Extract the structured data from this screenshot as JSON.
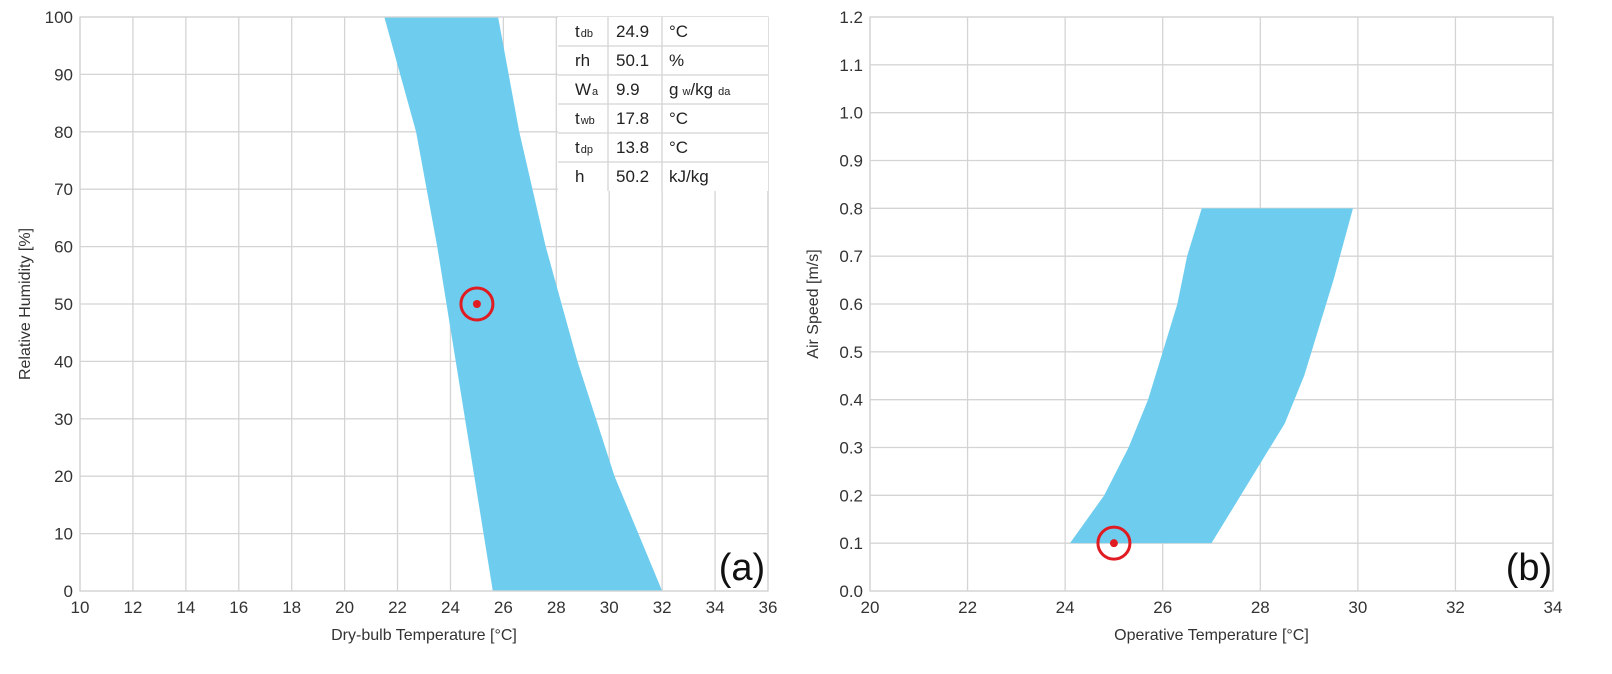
{
  "chart_data": [
    {
      "type": "area",
      "panel_label": "(a)",
      "xlabel": "Dry-bulb Temperature [°C]",
      "ylabel": "Relative Humidity [%]",
      "xlim": [
        10,
        36
      ],
      "ylim": [
        0,
        100
      ],
      "xticks": [
        "10",
        "12",
        "14",
        "16",
        "18",
        "20",
        "22",
        "24",
        "26",
        "28",
        "30",
        "32",
        "34",
        "36"
      ],
      "yticks": [
        "0",
        "10",
        "20",
        "30",
        "40",
        "50",
        "60",
        "70",
        "80",
        "90",
        "100"
      ],
      "grid": true,
      "comfort_zone": {
        "left_boundary": [
          [
            25.6,
            0
          ],
          [
            24.9,
            20
          ],
          [
            24.2,
            40
          ],
          [
            23.5,
            60
          ],
          [
            22.7,
            80
          ],
          [
            21.5,
            100
          ]
        ],
        "right_boundary": [
          [
            32.0,
            0
          ],
          [
            30.2,
            20
          ],
          [
            28.8,
            40
          ],
          [
            27.6,
            60
          ],
          [
            26.6,
            80
          ],
          [
            25.8,
            100
          ]
        ]
      },
      "current_point": {
        "x": 25.0,
        "y": 50.0
      },
      "readout": [
        {
          "symbol": "t",
          "subscript": "db",
          "value": "24.9",
          "unit": "°C"
        },
        {
          "symbol": "rh",
          "subscript": "",
          "value": "50.1",
          "unit": "%"
        },
        {
          "symbol": "W",
          "subscript": "a",
          "value": "9.9",
          "unit": "g",
          "unit_sub": "w",
          "unit_rest": "/kg",
          "unit_sub2": "da"
        },
        {
          "symbol": "t",
          "subscript": "wb",
          "value": "17.8",
          "unit": "°C"
        },
        {
          "symbol": "t",
          "subscript": "dp",
          "value": "13.8",
          "unit": "°C"
        },
        {
          "symbol": "h",
          "subscript": "",
          "value": "50.2",
          "unit": "kJ/kg"
        }
      ]
    },
    {
      "type": "area",
      "panel_label": "(b)",
      "xlabel": "Operative Temperature [°C]",
      "ylabel": "Air Speed [m/s]",
      "xlim": [
        20,
        34
      ],
      "ylim": [
        0,
        1.2
      ],
      "xticks": [
        "20",
        "22",
        "24",
        "26",
        "28",
        "30",
        "32",
        "34"
      ],
      "yticks": [
        "0.0",
        "0.1",
        "0.2",
        "0.3",
        "0.4",
        "0.5",
        "0.6",
        "0.7",
        "0.8",
        "0.9",
        "1.0",
        "1.1",
        "1.2"
      ],
      "grid": true,
      "comfort_zone": {
        "left_boundary": [
          [
            24.1,
            0.1
          ],
          [
            24.8,
            0.2
          ],
          [
            25.3,
            0.3
          ],
          [
            25.7,
            0.4
          ],
          [
            26.0,
            0.5
          ],
          [
            26.3,
            0.6
          ],
          [
            26.5,
            0.7
          ],
          [
            26.8,
            0.8
          ]
        ],
        "right_boundary": [
          [
            27.0,
            0.1
          ],
          [
            27.9,
            0.25
          ],
          [
            28.5,
            0.35
          ],
          [
            28.9,
            0.45
          ],
          [
            29.2,
            0.55
          ],
          [
            29.5,
            0.65
          ],
          [
            29.9,
            0.8
          ]
        ]
      },
      "current_point": {
        "x": 25.0,
        "y": 0.1
      }
    }
  ]
}
